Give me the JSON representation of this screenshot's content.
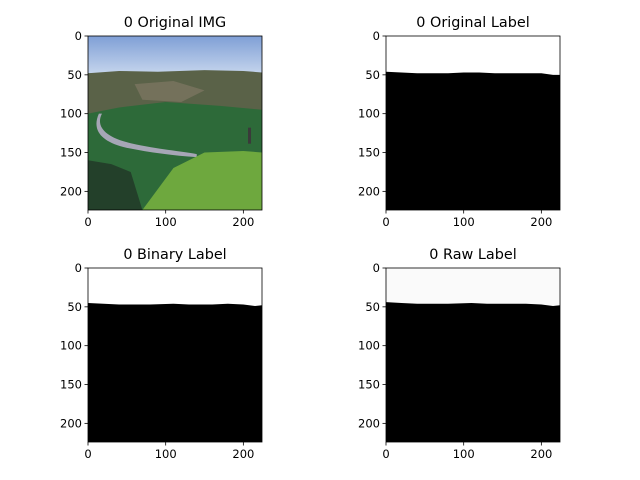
{
  "chart_data": [
    {
      "type": "image",
      "title": "0 Original IMG",
      "xlim": [
        0,
        224
      ],
      "ylim": [
        224,
        0
      ],
      "xticks": [
        0,
        100,
        200
      ],
      "yticks": [
        0,
        50,
        100,
        150,
        200
      ],
      "content": "photo",
      "colors": {
        "sky_top": "#7f9fd6",
        "sky_bottom": "#c4d4ec",
        "hills": "#5a6248",
        "valley": "#2d6a39",
        "river": "#a6a6b6",
        "grass": "#6ea83e"
      }
    },
    {
      "type": "image",
      "title": "0 Original Label",
      "xlim": [
        0,
        224
      ],
      "ylim": [
        224,
        0
      ],
      "xticks": [
        0,
        100,
        200
      ],
      "yticks": [
        0,
        50,
        100,
        150,
        200
      ],
      "content": "mask",
      "horizon": [
        [
          0,
          46
        ],
        [
          20,
          47
        ],
        [
          40,
          48
        ],
        [
          60,
          48
        ],
        [
          80,
          48
        ],
        [
          100,
          47
        ],
        [
          120,
          47
        ],
        [
          140,
          48
        ],
        [
          160,
          48
        ],
        [
          180,
          48
        ],
        [
          200,
          48
        ],
        [
          215,
          50
        ],
        [
          224,
          50
        ]
      ],
      "colors": {
        "upper": "#ffffff",
        "lower": "#000000"
      }
    },
    {
      "type": "image",
      "title": "0 Binary Label",
      "xlim": [
        0,
        224
      ],
      "ylim": [
        224,
        0
      ],
      "xticks": [
        0,
        100,
        200
      ],
      "yticks": [
        0,
        50,
        100,
        150,
        200
      ],
      "content": "mask",
      "horizon": [
        [
          0,
          45
        ],
        [
          20,
          46
        ],
        [
          40,
          47
        ],
        [
          60,
          47
        ],
        [
          80,
          47
        ],
        [
          110,
          46
        ],
        [
          130,
          47
        ],
        [
          160,
          47
        ],
        [
          180,
          46
        ],
        [
          200,
          47
        ],
        [
          215,
          49
        ],
        [
          224,
          48
        ]
      ],
      "colors": {
        "upper": "#ffffff",
        "lower": "#000000"
      }
    },
    {
      "type": "image",
      "title": "0 Raw Label",
      "xlim": [
        0,
        224
      ],
      "ylim": [
        224,
        0
      ],
      "xticks": [
        0,
        100,
        200
      ],
      "yticks": [
        0,
        50,
        100,
        150,
        200
      ],
      "content": "mask",
      "horizon": [
        [
          0,
          44
        ],
        [
          20,
          45
        ],
        [
          40,
          46
        ],
        [
          60,
          46
        ],
        [
          80,
          46
        ],
        [
          110,
          45
        ],
        [
          130,
          46
        ],
        [
          160,
          46
        ],
        [
          180,
          46
        ],
        [
          200,
          47
        ],
        [
          215,
          49
        ],
        [
          224,
          48
        ]
      ],
      "colors": {
        "upper": "#fafafa",
        "lower": "#000000"
      }
    }
  ]
}
